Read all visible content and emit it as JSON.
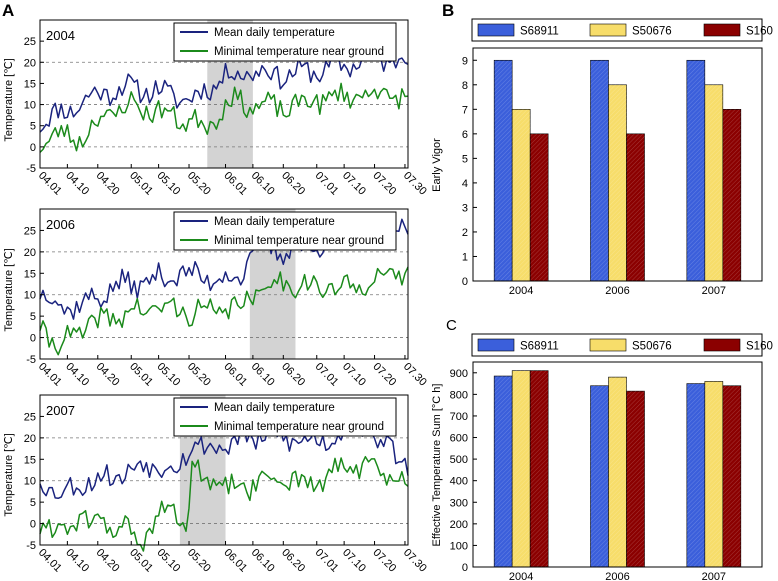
{
  "panel_labels": {
    "a": "A",
    "b": "B",
    "c": "C"
  },
  "chart_data": [
    {
      "type": "line",
      "id": "temp2004",
      "year_label": "2004",
      "ylabel": "Temperature [℃]",
      "ylim": [
        -5,
        30
      ],
      "yticks": [
        "25",
        "20",
        "15",
        "10",
        "5",
        "0",
        "-5"
      ],
      "x_count": 122,
      "xticks": [
        {
          "label": "04.01",
          "i": 0
        },
        {
          "label": "04.10",
          "i": 9
        },
        {
          "label": "04.20",
          "i": 19
        },
        {
          "label": "05.01",
          "i": 30
        },
        {
          "label": "05.10",
          "i": 39
        },
        {
          "label": "05.20",
          "i": 49
        },
        {
          "label": "06.01",
          "i": 61
        },
        {
          "label": "06.10",
          "i": 70
        },
        {
          "label": "06.20",
          "i": 80
        },
        {
          "label": "07.01",
          "i": 91
        },
        {
          "label": "07.10",
          "i": 100
        },
        {
          "label": "07.20",
          "i": 110
        },
        {
          "label": "07.30",
          "i": 120
        }
      ],
      "dashed_lines": [
        20,
        10,
        0
      ],
      "shade_range": [
        55,
        70
      ],
      "series": [
        {
          "name": "Mean daily temperature",
          "color": "#1a237e",
          "seed": 11,
          "knots": [
            [
              0,
              6
            ],
            [
              10,
              9
            ],
            [
              20,
              13
            ],
            [
              30,
              14
            ],
            [
              40,
              13
            ],
            [
              50,
              11
            ],
            [
              55,
              14
            ],
            [
              62,
              17
            ],
            [
              70,
              18
            ],
            [
              80,
              17
            ],
            [
              90,
              18
            ],
            [
              100,
              19
            ],
            [
              110,
              22
            ],
            [
              115,
              20
            ],
            [
              121,
              21
            ]
          ]
        },
        {
          "name": "Minimal temperature near ground",
          "color": "#1b8a1b",
          "seed": 23,
          "knots": [
            [
              0,
              1
            ],
            [
              8,
              3
            ],
            [
              14,
              2
            ],
            [
              20,
              7
            ],
            [
              30,
              10
            ],
            [
              40,
              8
            ],
            [
              50,
              6
            ],
            [
              55,
              5
            ],
            [
              62,
              11
            ],
            [
              70,
              10
            ],
            [
              80,
              9
            ],
            [
              90,
              11
            ],
            [
              100,
              12
            ],
            [
              110,
              13
            ],
            [
              121,
              11
            ]
          ]
        }
      ]
    },
    {
      "type": "line",
      "id": "temp2006",
      "year_label": "2006",
      "ylabel": "Temperature [℃]",
      "ylim": [
        -5,
        30
      ],
      "yticks": [
        "25",
        "20",
        "15",
        "10",
        "5",
        "0",
        "-5"
      ],
      "x_count": 122,
      "xticks": [
        {
          "label": "04.01",
          "i": 0
        },
        {
          "label": "04.10",
          "i": 9
        },
        {
          "label": "04.20",
          "i": 19
        },
        {
          "label": "05.01",
          "i": 30
        },
        {
          "label": "05.10",
          "i": 39
        },
        {
          "label": "05.20",
          "i": 49
        },
        {
          "label": "06.01",
          "i": 61
        },
        {
          "label": "06.10",
          "i": 70
        },
        {
          "label": "06.20",
          "i": 80
        },
        {
          "label": "07.01",
          "i": 91
        },
        {
          "label": "07.10",
          "i": 100
        },
        {
          "label": "07.20",
          "i": 110
        },
        {
          "label": "07.30",
          "i": 120
        }
      ],
      "dashed_lines": [
        20,
        10,
        0
      ],
      "shade_range": [
        69,
        84
      ],
      "series": [
        {
          "name": "Mean daily temperature",
          "color": "#1a237e",
          "seed": 37,
          "knots": [
            [
              0,
              11
            ],
            [
              8,
              7
            ],
            [
              15,
              8
            ],
            [
              25,
              12
            ],
            [
              35,
              13
            ],
            [
              45,
              15
            ],
            [
              55,
              14
            ],
            [
              65,
              14
            ],
            [
              70,
              19
            ],
            [
              75,
              22
            ],
            [
              80,
              20
            ],
            [
              90,
              21
            ],
            [
              100,
              23
            ],
            [
              105,
              26
            ],
            [
              115,
              25
            ],
            [
              121,
              24
            ]
          ]
        },
        {
          "name": "Minimal temperature near ground",
          "color": "#1b8a1b",
          "seed": 41,
          "knots": [
            [
              0,
              3
            ],
            [
              6,
              -2
            ],
            [
              12,
              1
            ],
            [
              20,
              4
            ],
            [
              30,
              6
            ],
            [
              40,
              7
            ],
            [
              50,
              6
            ],
            [
              60,
              6
            ],
            [
              70,
              9
            ],
            [
              75,
              13
            ],
            [
              80,
              13
            ],
            [
              90,
              12
            ],
            [
              100,
              11
            ],
            [
              110,
              14
            ],
            [
              121,
              15
            ]
          ]
        }
      ]
    },
    {
      "type": "line",
      "id": "temp2007",
      "year_label": "2007",
      "ylabel": "Temperature [℃]",
      "ylim": [
        -5,
        30
      ],
      "yticks": [
        "25",
        "20",
        "15",
        "10",
        "5",
        "0",
        "-5"
      ],
      "x_count": 122,
      "xticks": [
        {
          "label": "04.01",
          "i": 0
        },
        {
          "label": "04.10",
          "i": 9
        },
        {
          "label": "04.20",
          "i": 19
        },
        {
          "label": "05.01",
          "i": 30
        },
        {
          "label": "05.10",
          "i": 39
        },
        {
          "label": "05.20",
          "i": 49
        },
        {
          "label": "06.01",
          "i": 61
        },
        {
          "label": "06.10",
          "i": 70
        },
        {
          "label": "06.20",
          "i": 80
        },
        {
          "label": "07.01",
          "i": 91
        },
        {
          "label": "07.10",
          "i": 100
        },
        {
          "label": "07.20",
          "i": 110
        },
        {
          "label": "07.30",
          "i": 120
        }
      ],
      "dashed_lines": [
        20,
        10,
        0
      ],
      "shade_range": [
        46,
        61
      ],
      "series": [
        {
          "name": "Mean daily temperature",
          "color": "#1a237e",
          "seed": 53,
          "knots": [
            [
              0,
              10
            ],
            [
              8,
              7
            ],
            [
              15,
              10
            ],
            [
              25,
              11
            ],
            [
              35,
              14
            ],
            [
              45,
              13
            ],
            [
              50,
              19
            ],
            [
              55,
              17
            ],
            [
              62,
              19
            ],
            [
              70,
              20
            ],
            [
              80,
              20
            ],
            [
              90,
              19
            ],
            [
              100,
              21
            ],
            [
              104,
              26
            ],
            [
              110,
              19
            ],
            [
              116,
              18
            ],
            [
              121,
              13
            ]
          ]
        },
        {
          "name": "Minimal temperature near ground",
          "color": "#1b8a1b",
          "seed": 61,
          "knots": [
            [
              0,
              0
            ],
            [
              6,
              -2
            ],
            [
              12,
              1
            ],
            [
              20,
              0
            ],
            [
              28,
              -1
            ],
            [
              34,
              -4
            ],
            [
              40,
              2
            ],
            [
              45,
              3
            ],
            [
              48,
              -1
            ],
            [
              50,
              12
            ],
            [
              55,
              10
            ],
            [
              62,
              8
            ],
            [
              70,
              9
            ],
            [
              80,
              11
            ],
            [
              90,
              9
            ],
            [
              100,
              13
            ],
            [
              104,
              14
            ],
            [
              110,
              12
            ],
            [
              116,
              11
            ],
            [
              121,
              8
            ]
          ]
        }
      ]
    },
    {
      "type": "bar",
      "id": "early_vigor",
      "ylabel": "Early Vigor",
      "ylim": [
        0,
        9.5
      ],
      "yticks": [
        0,
        1,
        2,
        3,
        4,
        5,
        6,
        7,
        8,
        9
      ],
      "categories": [
        "2004",
        "2006",
        "2007"
      ],
      "series": [
        {
          "name": "S68911",
          "color": "#3b5fdb",
          "values": [
            9,
            9,
            9
          ]
        },
        {
          "name": "S50676",
          "color": "#f7dd6a",
          "values": [
            7,
            8,
            8
          ]
        },
        {
          "name": "S160",
          "color": "#8b0000",
          "values": [
            6,
            6,
            7
          ]
        }
      ]
    },
    {
      "type": "bar",
      "id": "temp_sum",
      "ylabel": "Effective Temperature Sum [°C h]",
      "ylim": [
        0,
        950
      ],
      "yticks": [
        0,
        100,
        200,
        300,
        400,
        500,
        600,
        700,
        800,
        900
      ],
      "categories": [
        "2004",
        "2006",
        "2007"
      ],
      "series": [
        {
          "name": "S68911",
          "color": "#3b5fdb",
          "values": [
            885,
            840,
            850
          ]
        },
        {
          "name": "S50676",
          "color": "#f7dd6a",
          "values": [
            910,
            880,
            860
          ]
        },
        {
          "name": "S160",
          "color": "#8b0000",
          "values": [
            910,
            815,
            840
          ]
        }
      ]
    }
  ]
}
